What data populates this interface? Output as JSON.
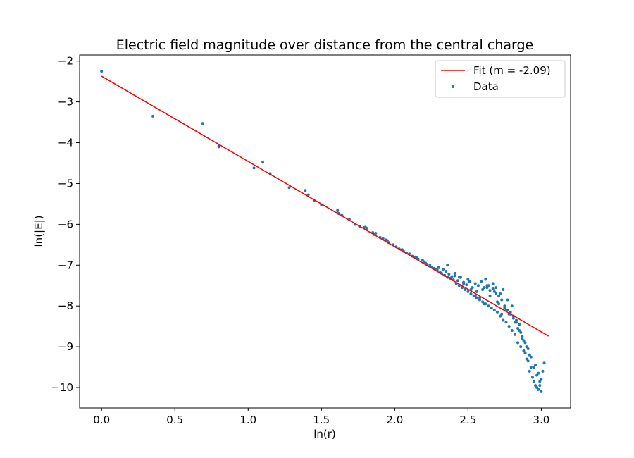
{
  "chart_data": {
    "type": "scatter",
    "title": "Electric field magnitude over distance from the central charge",
    "xlabel": "ln(r)",
    "ylabel": "ln(|E|)",
    "xlim": [
      -0.15,
      3.2
    ],
    "ylim": [
      -10.5,
      -1.85
    ],
    "xticks": [
      0.0,
      0.5,
      1.0,
      1.5,
      2.0,
      2.5,
      3.0
    ],
    "xtick_labels": [
      "0.0",
      "0.5",
      "1.0",
      "1.5",
      "2.0",
      "2.5",
      "3.0"
    ],
    "yticks": [
      -2,
      -3,
      -4,
      -5,
      -6,
      -7,
      -8,
      -9,
      -10
    ],
    "ytick_labels": [
      "−2",
      "−3",
      "−4",
      "−5",
      "−6",
      "−7",
      "−8",
      "−9",
      "−10"
    ],
    "grid": false,
    "legend_position": "top-right",
    "series": [
      {
        "name": "Fit (m = -2.09)",
        "kind": "line",
        "color": "#ff0000",
        "x": [
          0.0,
          3.05
        ],
        "y": [
          -2.37,
          -8.74
        ]
      },
      {
        "name": "Data",
        "kind": "scatter",
        "color": "#1f77b4",
        "x": [
          0.0,
          0.35,
          0.69,
          0.8,
          0.8,
          1.04,
          1.1,
          1.15,
          1.28,
          1.39,
          1.41,
          1.45,
          1.5,
          1.61,
          1.61,
          1.62,
          1.64,
          1.69,
          1.73,
          1.76,
          1.79,
          1.8,
          1.81,
          1.85,
          1.86,
          1.87,
          1.9,
          1.92,
          1.94,
          1.95,
          1.96,
          1.99,
          2.01,
          2.03,
          2.05,
          2.06,
          2.08,
          2.1,
          2.12,
          2.14,
          2.15,
          2.16,
          2.19,
          2.2,
          2.21,
          2.22,
          2.24,
          2.25,
          2.27,
          2.28,
          2.29,
          2.3,
          2.31,
          2.32,
          2.33,
          2.34,
          2.35,
          2.36,
          2.37,
          2.38,
          2.39,
          2.4,
          2.41,
          2.42,
          2.43,
          2.44,
          2.45,
          2.46,
          2.47,
          2.48,
          2.49,
          2.5,
          2.51,
          2.52,
          2.53,
          2.54,
          2.55,
          2.56,
          2.57,
          2.58,
          2.59,
          2.6,
          2.61,
          2.62,
          2.63,
          2.64,
          2.65,
          2.66,
          2.67,
          2.68,
          2.69,
          2.7,
          2.71,
          2.72,
          2.73,
          2.74,
          2.75,
          2.76,
          2.77,
          2.78,
          2.79,
          2.8,
          2.81,
          2.82,
          2.83,
          2.84,
          2.85,
          2.86,
          2.87,
          2.88,
          2.89,
          2.9,
          2.91,
          2.92,
          2.93,
          2.94,
          2.95,
          2.96,
          2.97,
          2.98,
          2.99,
          3.0,
          3.01,
          3.02,
          2.44,
          2.47,
          2.52,
          2.55,
          2.58,
          2.61,
          2.63,
          2.66,
          2.68,
          2.71,
          2.73,
          2.76,
          2.79,
          2.81,
          2.84,
          2.86,
          2.88,
          2.9,
          2.92,
          2.95,
          2.97,
          2.99,
          2.62,
          2.64,
          2.67,
          2.69,
          2.72,
          2.74,
          2.77,
          2.8,
          2.83,
          2.85,
          2.87,
          2.89,
          2.91,
          2.93,
          2.96,
          2.98,
          3.0,
          2.36,
          2.41,
          2.5,
          2.56,
          2.6,
          2.65,
          2.7,
          2.75,
          2.78,
          2.82
        ],
        "y": [
          -2.25,
          -3.35,
          -3.53,
          -4.08,
          -4.1,
          -4.62,
          -4.48,
          -4.76,
          -5.1,
          -5.17,
          -5.28,
          -5.42,
          -5.52,
          -5.66,
          -5.72,
          -5.74,
          -5.78,
          -5.88,
          -6.0,
          -6.05,
          -6.08,
          -6.07,
          -6.1,
          -6.2,
          -6.25,
          -6.22,
          -6.32,
          -6.35,
          -6.38,
          -6.4,
          -6.45,
          -6.5,
          -6.55,
          -6.6,
          -6.62,
          -6.66,
          -6.7,
          -6.72,
          -6.78,
          -6.8,
          -6.82,
          -6.85,
          -6.88,
          -6.92,
          -6.95,
          -6.98,
          -7.0,
          -7.05,
          -7.08,
          -7.1,
          -7.12,
          -7.06,
          -7.18,
          -7.2,
          -7.1,
          -7.25,
          -7.15,
          -7.3,
          -7.22,
          -7.32,
          -7.28,
          -7.36,
          -7.26,
          -7.45,
          -7.38,
          -7.5,
          -7.3,
          -7.55,
          -7.42,
          -7.6,
          -7.48,
          -7.65,
          -7.4,
          -7.7,
          -7.55,
          -7.75,
          -7.45,
          -7.8,
          -7.5,
          -7.85,
          -7.4,
          -7.9,
          -7.55,
          -7.95,
          -7.5,
          -8.0,
          -7.62,
          -8.05,
          -7.58,
          -8.1,
          -7.7,
          -8.15,
          -7.75,
          -8.25,
          -7.85,
          -8.35,
          -8.0,
          -8.4,
          -8.1,
          -8.5,
          -8.2,
          -8.6,
          -8.25,
          -8.7,
          -8.4,
          -8.9,
          -8.6,
          -9.0,
          -8.8,
          -9.1,
          -9.15,
          -9.3,
          -9.35,
          -9.6,
          -9.5,
          -9.75,
          -9.85,
          -9.95,
          -10.0,
          -10.05,
          -9.85,
          -10.1,
          -9.6,
          -9.4,
          -7.3,
          -7.45,
          -7.6,
          -7.75,
          -7.8,
          -7.95,
          -7.55,
          -8.05,
          -7.65,
          -7.95,
          -8.2,
          -8.1,
          -8.15,
          -8.3,
          -8.55,
          -8.65,
          -8.85,
          -9.0,
          -9.2,
          -9.5,
          -9.7,
          -9.95,
          -7.35,
          -7.5,
          -7.45,
          -7.55,
          -7.7,
          -7.6,
          -7.85,
          -8.0,
          -8.35,
          -8.45,
          -8.75,
          -8.9,
          -9.05,
          -9.25,
          -9.45,
          -9.65,
          -9.8,
          -7.0,
          -7.2,
          -7.35,
          -7.65,
          -7.6,
          -7.75,
          -7.9,
          -8.05,
          -8.2,
          -8.4
        ]
      }
    ]
  }
}
